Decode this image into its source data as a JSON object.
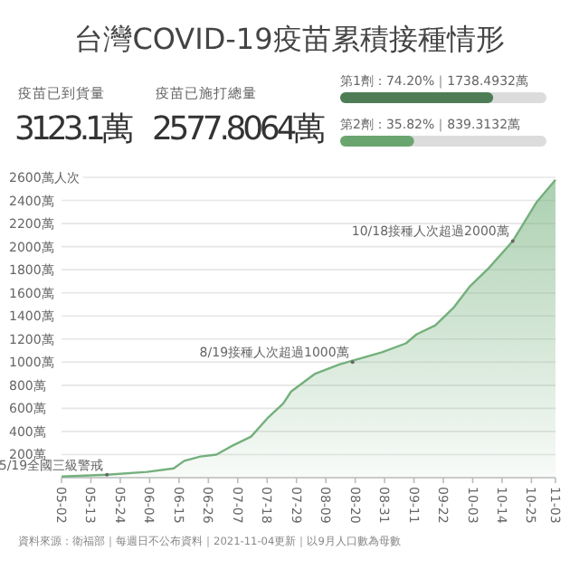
{
  "chart_data": [
    {
      "type": "other",
      "title": "台灣COVID-19疫苗累積接種情形",
      "annotations": [
        "疫苗已到貨量",
        "3123.1萬",
        "疫苗已施打總量",
        "2577.8064萬"
      ]
    },
    {
      "type": "bar",
      "orientation": "horizontal",
      "categories": [
        null,
        null
      ],
      "values": [
        74.2,
        35.82
      ],
      "colors": [
        "#4e7d55",
        "#6aa56f"
      ],
      "value_labels": [
        "第1劑：74.20%｜1738.4932萬",
        "第2劑：35.82%｜839.3132萬"
      ],
      "xlim": [
        0,
        100
      ],
      "tick_labels": false
    },
    {
      "type": "area",
      "color": "#74b07c",
      "x": [
        "2021-05-02",
        "2021-05-19",
        "2021-06-03",
        "2021-06-13",
        "2021-06-17",
        "2021-06-23",
        "2021-06-29",
        "2021-07-05",
        "2021-07-12",
        "2021-07-18",
        "2021-07-24",
        "2021-07-27",
        "2021-08-05",
        "2021-08-14",
        "2021-08-22",
        "2021-08-30",
        "2021-09-08",
        "2021-09-12",
        "2021-09-19",
        "2021-09-26",
        "2021-10-02",
        "2021-10-09",
        "2021-10-18",
        "2021-10-27",
        "2021-11-03"
      ],
      "values": [
        10,
        25,
        50,
        80,
        146,
        183,
        200,
        277,
        355,
        511,
        641,
        746,
        900,
        980,
        1033,
        1085,
        1163,
        1241,
        1319,
        1476,
        1658,
        1814,
        2048,
        2387,
        2578
      ],
      "xlim": [
        "2021-05-02",
        "2021-11-03"
      ],
      "ylim": [
        0,
        2600
      ],
      "xticks": [
        {
          "value": "2021-05-02",
          "label": "05-02"
        },
        {
          "value": "2021-05-13",
          "label": "05-13"
        },
        {
          "value": "2021-05-24",
          "label": "05-24"
        },
        {
          "value": "2021-06-04",
          "label": "06-04"
        },
        {
          "value": "2021-06-15",
          "label": "06-15"
        },
        {
          "value": "2021-06-26",
          "label": "06-26"
        },
        {
          "value": "2021-07-07",
          "label": "07-07"
        },
        {
          "value": "2021-07-18",
          "label": "07-18"
        },
        {
          "value": "2021-07-29",
          "label": "07-29"
        },
        {
          "value": "2021-08-09",
          "label": "08-09"
        },
        {
          "value": "2021-08-20",
          "label": "08-20"
        },
        {
          "value": "2021-08-31",
          "label": "08-31"
        },
        {
          "value": "2021-09-11",
          "label": "09-11"
        },
        {
          "value": "2021-09-22",
          "label": "09-22"
        },
        {
          "value": "2021-10-03",
          "label": "10-03"
        },
        {
          "value": "2021-10-14",
          "label": "10-14"
        },
        {
          "value": "2021-10-25",
          "label": "10-25"
        },
        {
          "value": "2021-11-03",
          "label": "11-03"
        }
      ],
      "yticks": [
        {
          "value": 200,
          "label": "200萬"
        },
        {
          "value": 400,
          "label": "400萬"
        },
        {
          "value": 600,
          "label": "600萬"
        },
        {
          "value": 800,
          "label": "800萬"
        },
        {
          "value": 1000,
          "label": "1000萬"
        },
        {
          "value": 1200,
          "label": "1200萬"
        },
        {
          "value": 1400,
          "label": "1400萬"
        },
        {
          "value": 1600,
          "label": "1600萬"
        },
        {
          "value": 1800,
          "label": "1800萬"
        },
        {
          "value": 2000,
          "label": "2000萬"
        },
        {
          "value": 2200,
          "label": "2200萬"
        },
        {
          "value": 2400,
          "label": "2400萬"
        },
        {
          "value": 2600,
          "label": "2600萬人次"
        }
      ],
      "grid": "y",
      "annotations": [
        {
          "text": "5/19全國三級警戒",
          "x": "2021-05-19",
          "y": 25
        },
        {
          "text": "8/19接種人次超過1000萬",
          "x": "2021-08-19",
          "y": 1000
        },
        {
          "text": "10/18接種人次超過2000萬",
          "x": "2021-10-18",
          "y": 2048
        },
        "資料來源：衛福部｜每週日不公布資料｜2021-11-04更新｜以9月人口數為母數"
      ]
    }
  ]
}
